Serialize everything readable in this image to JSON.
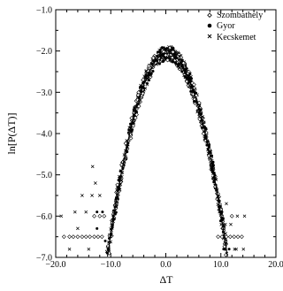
{
  "chart_data": {
    "type": "scatter",
    "xlabel": "ΔT",
    "ylabel": "ln[P(ΔT)]",
    "xlim": [
      -20.0,
      20.0
    ],
    "ylim": [
      -7.0,
      -1.0
    ],
    "xticks": [
      -20.0,
      -10.0,
      0.0,
      10.0,
      20.0
    ],
    "xtick_labels": [
      "−20.0",
      "−10.0",
      "0.0",
      "10.0",
      "20.0"
    ],
    "yticks": [
      -1.0,
      -2.0,
      -3.0,
      -4.0,
      -5.0,
      -6.0,
      -7.0
    ],
    "ytick_labels": [
      "−1.0",
      "−2.0",
      "−3.0",
      "−4.0",
      "−5.0",
      "−6.0",
      "−7.0"
    ],
    "legend_position": "top-right",
    "series": [
      {
        "name": "Szombathely",
        "marker": "diamond"
      },
      {
        "name": "Gyor",
        "marker": "dot"
      },
      {
        "name": "Kecskemet",
        "marker": "cross"
      }
    ],
    "fit_line": {
      "type": "parabola",
      "vertex": [
        0.3,
        -2.05
      ],
      "curvature": 0.0415
    }
  }
}
